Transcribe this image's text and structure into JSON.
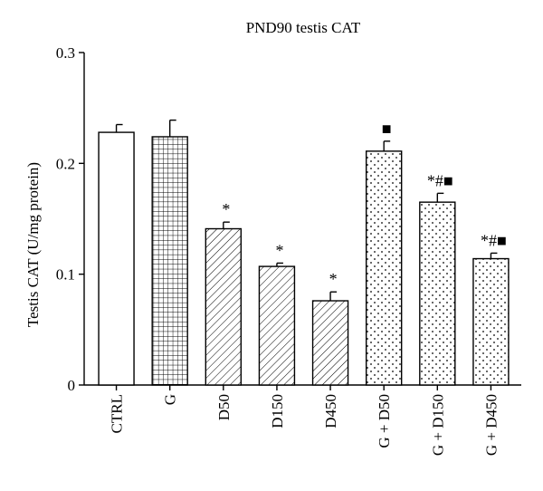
{
  "chart_data": {
    "type": "bar",
    "title": "PND90 testis CAT",
    "ylabel": "Testis CAT (U/mg protein)",
    "xlabel": "",
    "ylim": [
      0,
      0.3
    ],
    "yticks": [
      "0",
      "0.1",
      "0.2",
      "0.3"
    ],
    "ytick_values": [
      0,
      0.1,
      0.2,
      0.3
    ],
    "grid": false,
    "categories": [
      "CTRL",
      "G",
      "D50",
      "D150",
      "D450",
      "G + D50",
      "G + D150",
      "G + D450"
    ],
    "values": [
      0.228,
      0.224,
      0.141,
      0.107,
      0.076,
      0.211,
      0.165,
      0.114
    ],
    "errors": [
      0.007,
      0.015,
      0.006,
      0.003,
      0.008,
      0.009,
      0.008,
      0.005
    ],
    "fills": [
      "white",
      "grid",
      "hatch",
      "hatch",
      "hatch",
      "dots",
      "dots",
      "dots"
    ],
    "annotations": [
      {
        "category": "D50",
        "text": "*"
      },
      {
        "category": "D150",
        "text": "*"
      },
      {
        "category": "D450",
        "text": "*"
      },
      {
        "category": "G + D50",
        "text": "■"
      },
      {
        "category": "G + D150",
        "text": "*#■"
      },
      {
        "category": "G + D450",
        "text": "*#■"
      }
    ]
  }
}
